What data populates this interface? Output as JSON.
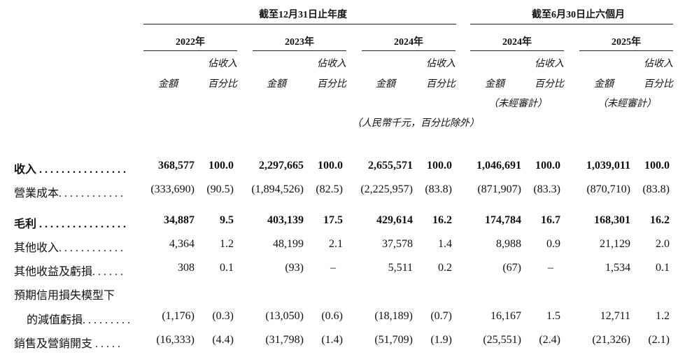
{
  "headers": {
    "group_annual": "截至12月31日止年度",
    "group_six": "截至6月30日止六個月",
    "years": [
      "2022年",
      "2023年",
      "2024年",
      "2024年",
      "2025年"
    ],
    "amount": "金額",
    "pct_line1": "佔收入",
    "pct_line2": "百分比",
    "unaudited": "（未經審計）",
    "unit_note": "（人民幣千元，百分比除外）"
  },
  "rows": [
    {
      "label": "收入 . . . . . . . . . . . . . . . .",
      "bold": true,
      "values": [
        "368,577",
        "100.0",
        "2,297,665",
        "100.0",
        "2,655,571",
        "100.0",
        "1,046,691",
        "100.0",
        "1,039,011",
        "100.0"
      ]
    },
    {
      "label": "營業成本. . . . . . . . . . . .",
      "bold": false,
      "values": [
        "(333,690)",
        "(90.5)",
        "(1,894,526)",
        "(82.5)",
        "(2,225,957)",
        "(83.8)",
        "(871,907)",
        "(83.3)",
        "(870,710)",
        "(83.8)"
      ]
    },
    {
      "label": "毛利 . . . . . . . . . . . . . . . .",
      "bold": true,
      "values": [
        "34,887",
        "9.5",
        "403,139",
        "17.5",
        "429,614",
        "16.2",
        "174,784",
        "16.7",
        "168,301",
        "16.2"
      ]
    },
    {
      "label": "其他收入. . . . . . . . . . . .",
      "bold": false,
      "values": [
        "4,364",
        "1.2",
        "48,199",
        "2.1",
        "37,578",
        "1.4",
        "8,988",
        "0.9",
        "21,129",
        "2.0"
      ]
    },
    {
      "label": "其他收益及虧損. . . . . .",
      "bold": false,
      "values": [
        "308",
        "0.1",
        "(93)",
        "–",
        "5,511",
        "0.2",
        "(67)",
        "–",
        "1,534",
        "0.1"
      ]
    },
    {
      "label": "預期信用損失模型下",
      "bold": false,
      "values": []
    },
    {
      "label": "的減值虧損. . . . . . . . .",
      "bold": false,
      "values": [
        "(1,176)",
        "(0.3)",
        "(13,050)",
        "(0.6)",
        "(18,189)",
        "(0.7)",
        "16,167",
        "1.5",
        "12,711",
        "1.2"
      ]
    },
    {
      "label": "銷售及營銷開支 . . . . .",
      "bold": false,
      "values": [
        "(16,333)",
        "(4.4)",
        "(31,798)",
        "(1.4)",
        "(51,709)",
        "(1.9)",
        "(25,551)",
        "(2.4)",
        "(21,326)",
        "(2.1)"
      ]
    }
  ]
}
